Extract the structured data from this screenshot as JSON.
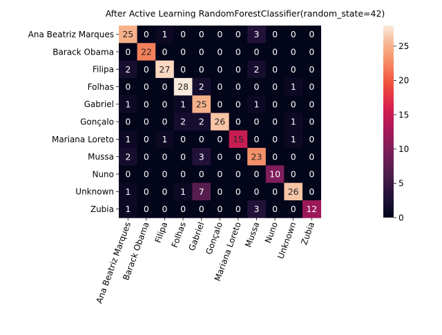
{
  "chart_data": {
    "type": "heatmap",
    "title": "After Active Learning RandomForestClassifier(random_state=42)",
    "xlabel": "",
    "ylabel": "",
    "row_labels": [
      "Ana Beatriz Marques",
      "Barack Obama",
      "Filipa",
      "Folhas",
      "Gabriel",
      "Gonçalo",
      "Mariana Loreto",
      "Mussa",
      "Nuno",
      "Unknown",
      "Zubia"
    ],
    "col_labels": [
      "Ana Beatriz Marques",
      "Barack Obama",
      "Filipa",
      "Folhas",
      "Gabriel",
      "Gonçalo",
      "Mariana Loreto",
      "Mussa",
      "Nuno",
      "Unknown",
      "Zubia"
    ],
    "values": [
      [
        25,
        0,
        1,
        0,
        0,
        0,
        0,
        3,
        0,
        0,
        0
      ],
      [
        0,
        22,
        0,
        0,
        0,
        0,
        0,
        0,
        0,
        0,
        0
      ],
      [
        2,
        0,
        27,
        0,
        0,
        0,
        0,
        2,
        0,
        0,
        0
      ],
      [
        0,
        0,
        0,
        28,
        2,
        0,
        0,
        0,
        0,
        1,
        0
      ],
      [
        1,
        0,
        0,
        1,
        25,
        0,
        0,
        1,
        0,
        0,
        0
      ],
      [
        0,
        0,
        0,
        2,
        2,
        26,
        0,
        0,
        0,
        1,
        0
      ],
      [
        1,
        0,
        1,
        0,
        0,
        0,
        15,
        0,
        0,
        1,
        0
      ],
      [
        2,
        0,
        0,
        0,
        3,
        0,
        0,
        23,
        0,
        0,
        0
      ],
      [
        0,
        0,
        0,
        0,
        0,
        0,
        0,
        0,
        10,
        0,
        0
      ],
      [
        1,
        0,
        0,
        1,
        7,
        0,
        0,
        0,
        0,
        26,
        0
      ],
      [
        1,
        0,
        0,
        0,
        0,
        0,
        0,
        3,
        0,
        0,
        12
      ]
    ],
    "colormap": "rocket",
    "vmin": 0,
    "vmax": 28,
    "colorbar_ticks": [
      0,
      5,
      10,
      15,
      20,
      25
    ],
    "annotation_colors": {
      "on_dark": "#ffffff",
      "on_light": "#262626"
    },
    "grid": false,
    "legend": "colorbar-right"
  }
}
